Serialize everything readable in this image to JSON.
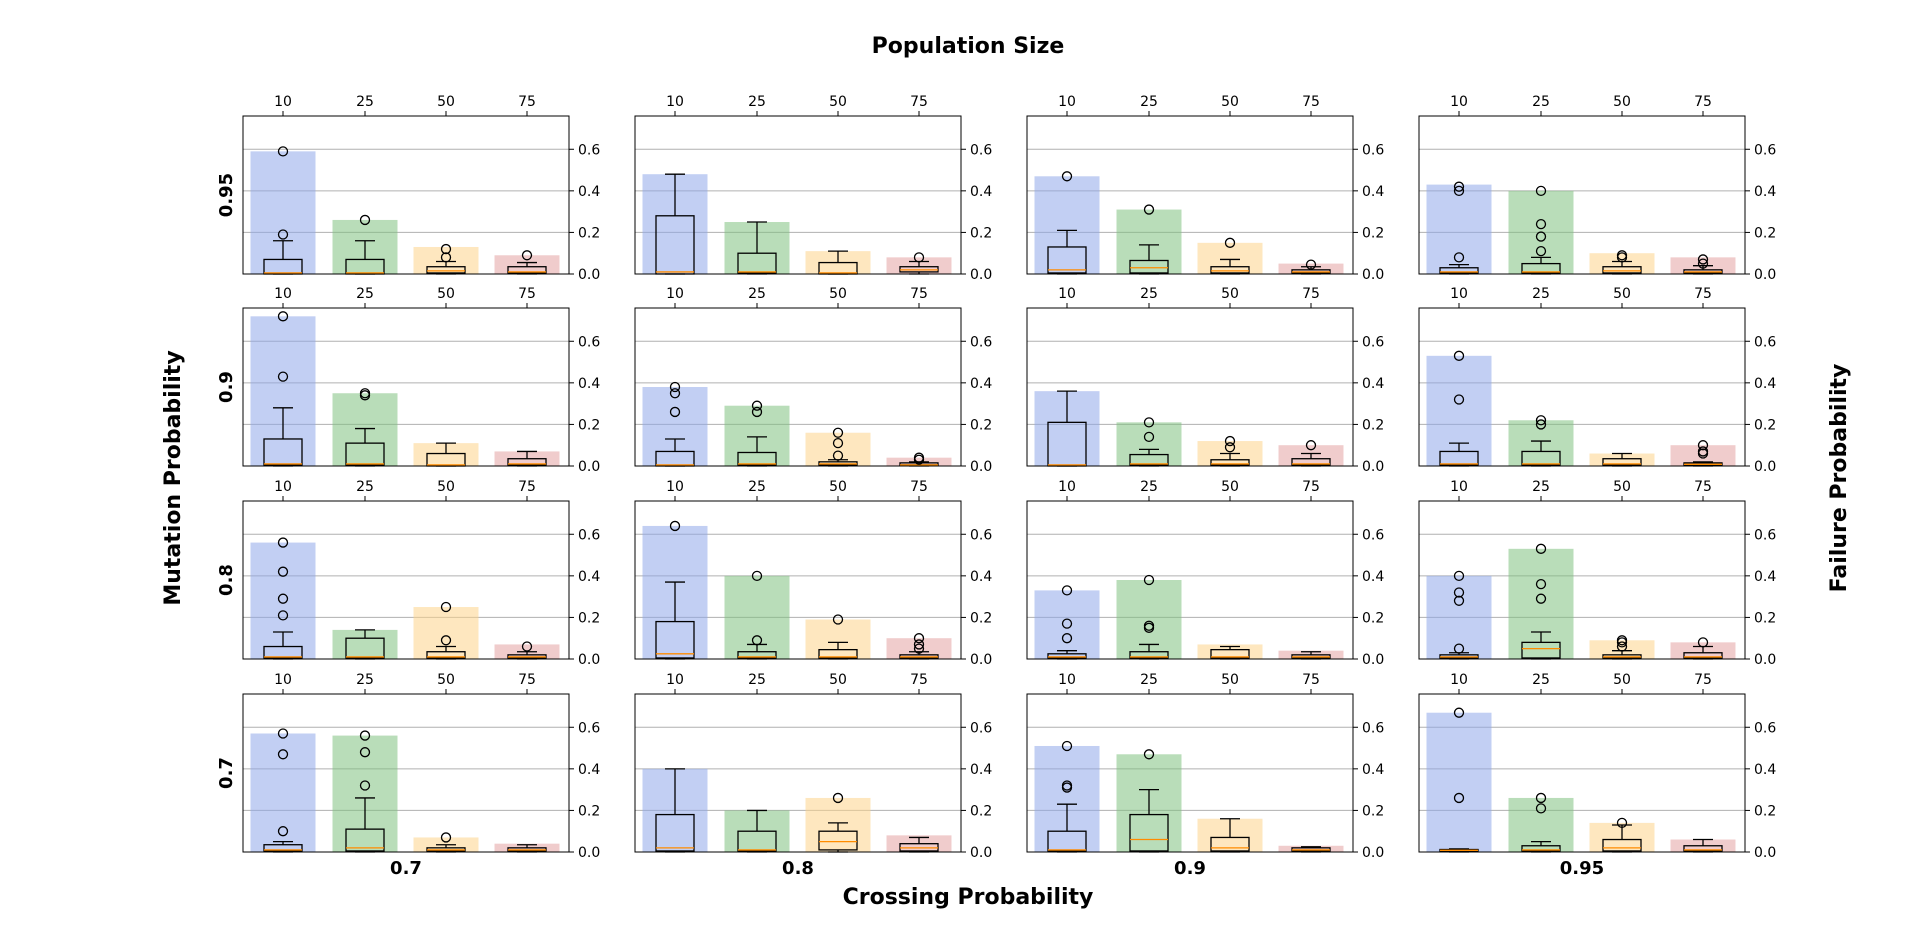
{
  "chart_data": {
    "type": "bar",
    "top_title": "Population Size",
    "bottom_title": "Crossing Probability",
    "left_title": "Mutation Probability",
    "right_title": "Failure Probability",
    "categories": [
      "10",
      "25",
      "50",
      "75"
    ],
    "bar_colors": [
      "#8fa8ea",
      "#7fc17f",
      "#fdd48a",
      "#e3a3a3"
    ],
    "box_median_color": "#ff8c00",
    "columns": [
      "0.7",
      "0.8",
      "0.9",
      "0.95"
    ],
    "rows": [
      "0.95",
      "0.9",
      "0.8",
      "0.7"
    ],
    "yticks": [
      "0.0",
      "0.2",
      "0.4",
      "0.6"
    ],
    "ylim": [
      0,
      0.76
    ],
    "grid": "horizontal",
    "panels": [
      [
        {
          "bars": [
            0.59,
            0.26,
            0.13,
            0.09
          ],
          "boxes": [
            {
              "low": 0,
              "q1": 0,
              "med": 0.005,
              "q3": 0.07,
              "high": 0.16,
              "out": [
                0.19,
                0.59
              ]
            },
            {
              "low": 0,
              "q1": 0,
              "med": 0.005,
              "q3": 0.07,
              "high": 0.16,
              "out": [
                0.26
              ]
            },
            {
              "low": 0,
              "q1": 0.005,
              "med": 0.015,
              "q3": 0.035,
              "high": 0.06,
              "out": [
                0.08,
                0.12
              ]
            },
            {
              "low": 0,
              "q1": 0.005,
              "med": 0.01,
              "q3": 0.035,
              "high": 0.055,
              "out": [
                0.09
              ]
            }
          ]
        },
        {
          "bars": [
            0.48,
            0.25,
            0.11,
            0.08
          ],
          "boxes": [
            {
              "low": 0,
              "q1": 0,
              "med": 0.01,
              "q3": 0.28,
              "high": 0.48,
              "out": []
            },
            {
              "low": 0,
              "q1": 0.005,
              "med": 0.01,
              "q3": 0.1,
              "high": 0.25,
              "out": []
            },
            {
              "low": 0,
              "q1": 0,
              "med": 0.005,
              "q3": 0.055,
              "high": 0.11,
              "out": []
            },
            {
              "low": 0,
              "q1": 0.01,
              "med": 0.02,
              "q3": 0.035,
              "high": 0.06,
              "out": [
                0.08
              ]
            }
          ]
        },
        {
          "bars": [
            0.47,
            0.31,
            0.15,
            0.05
          ],
          "boxes": [
            {
              "low": 0,
              "q1": 0.005,
              "med": 0.02,
              "q3": 0.13,
              "high": 0.21,
              "out": [
                0.47
              ]
            },
            {
              "low": 0,
              "q1": 0.005,
              "med": 0.03,
              "q3": 0.065,
              "high": 0.14,
              "out": [
                0.31
              ]
            },
            {
              "low": 0,
              "q1": 0.005,
              "med": 0.015,
              "q3": 0.035,
              "high": 0.07,
              "out": [
                0.15
              ]
            },
            {
              "low": 0,
              "q1": 0.005,
              "med": 0.01,
              "q3": 0.02,
              "high": 0.035,
              "out": [
                0.045
              ]
            }
          ]
        },
        {
          "bars": [
            0.43,
            0.4,
            0.1,
            0.08
          ],
          "boxes": [
            {
              "low": 0,
              "q1": 0.005,
              "med": 0.01,
              "q3": 0.03,
              "high": 0.045,
              "out": [
                0.08,
                0.4,
                0.42
              ]
            },
            {
              "low": 0,
              "q1": 0.005,
              "med": 0.01,
              "q3": 0.05,
              "high": 0.08,
              "out": [
                0.11,
                0.18,
                0.24,
                0.4
              ]
            },
            {
              "low": 0,
              "q1": 0.005,
              "med": 0.015,
              "q3": 0.035,
              "high": 0.06,
              "out": [
                0.08,
                0.09
              ]
            },
            {
              "low": 0,
              "q1": 0.005,
              "med": 0.01,
              "q3": 0.02,
              "high": 0.04,
              "out": [
                0.05,
                0.07
              ]
            }
          ]
        }
      ],
      [
        {
          "bars": [
            0.72,
            0.35,
            0.11,
            0.07
          ],
          "boxes": [
            {
              "low": 0,
              "q1": 0.005,
              "med": 0.01,
              "q3": 0.13,
              "high": 0.28,
              "out": [
                0.43,
                0.72
              ]
            },
            {
              "low": 0,
              "q1": 0.005,
              "med": 0.01,
              "q3": 0.11,
              "high": 0.18,
              "out": [
                0.34,
                0.35
              ]
            },
            {
              "low": 0,
              "q1": 0,
              "med": 0.005,
              "q3": 0.06,
              "high": 0.11,
              "out": []
            },
            {
              "low": 0,
              "q1": 0.005,
              "med": 0.01,
              "q3": 0.035,
              "high": 0.07,
              "out": []
            }
          ]
        },
        {
          "bars": [
            0.38,
            0.29,
            0.16,
            0.04
          ],
          "boxes": [
            {
              "low": 0,
              "q1": 0,
              "med": 0.005,
              "q3": 0.07,
              "high": 0.13,
              "out": [
                0.26,
                0.35,
                0.38
              ]
            },
            {
              "low": 0,
              "q1": 0.005,
              "med": 0.01,
              "q3": 0.065,
              "high": 0.14,
              "out": [
                0.26,
                0.29
              ]
            },
            {
              "low": 0,
              "q1": 0.005,
              "med": 0.01,
              "q3": 0.02,
              "high": 0.03,
              "out": [
                0.05,
                0.11,
                0.16
              ]
            },
            {
              "low": 0,
              "q1": 0.005,
              "med": 0.005,
              "q3": 0.015,
              "high": 0.02,
              "out": [
                0.03,
                0.04
              ]
            }
          ]
        },
        {
          "bars": [
            0.36,
            0.21,
            0.12,
            0.1
          ],
          "boxes": [
            {
              "low": 0,
              "q1": 0,
              "med": 0.005,
              "q3": 0.21,
              "high": 0.36,
              "out": []
            },
            {
              "low": 0,
              "q1": 0.005,
              "med": 0.01,
              "q3": 0.055,
              "high": 0.08,
              "out": [
                0.14,
                0.21
              ]
            },
            {
              "low": 0,
              "q1": 0.005,
              "med": 0.01,
              "q3": 0.03,
              "high": 0.06,
              "out": [
                0.09,
                0.12
              ]
            },
            {
              "low": 0,
              "q1": 0.005,
              "med": 0.01,
              "q3": 0.035,
              "high": 0.06,
              "out": [
                0.1
              ]
            }
          ]
        },
        {
          "bars": [
            0.53,
            0.22,
            0.06,
            0.1
          ],
          "boxes": [
            {
              "low": 0,
              "q1": 0.005,
              "med": 0.01,
              "q3": 0.07,
              "high": 0.11,
              "out": [
                0.32,
                0.53
              ]
            },
            {
              "low": 0,
              "q1": 0.005,
              "med": 0.01,
              "q3": 0.07,
              "high": 0.12,
              "out": [
                0.2,
                0.22
              ]
            },
            {
              "low": 0,
              "q1": 0.005,
              "med": 0.01,
              "q3": 0.035,
              "high": 0.06,
              "out": []
            },
            {
              "low": 0,
              "q1": 0.005,
              "med": 0.008,
              "q3": 0.015,
              "high": 0.02,
              "out": [
                0.06,
                0.07,
                0.1
              ]
            }
          ]
        }
      ],
      [
        {
          "bars": [
            0.56,
            0.14,
            0.25,
            0.07
          ],
          "boxes": [
            {
              "low": 0,
              "q1": 0.005,
              "med": 0.01,
              "q3": 0.06,
              "high": 0.13,
              "out": [
                0.21,
                0.29,
                0.42,
                0.56
              ]
            },
            {
              "low": 0,
              "q1": 0.005,
              "med": 0.01,
              "q3": 0.1,
              "high": 0.14,
              "out": []
            },
            {
              "low": 0,
              "q1": 0.005,
              "med": 0.01,
              "q3": 0.035,
              "high": 0.06,
              "out": [
                0.09,
                0.25
              ]
            },
            {
              "low": 0,
              "q1": 0.005,
              "med": 0.01,
              "q3": 0.02,
              "high": 0.035,
              "out": [
                0.06
              ]
            }
          ]
        },
        {
          "bars": [
            0.64,
            0.4,
            0.19,
            0.1
          ],
          "boxes": [
            {
              "low": 0,
              "q1": 0.005,
              "med": 0.025,
              "q3": 0.18,
              "high": 0.37,
              "out": [
                0.64
              ]
            },
            {
              "low": 0,
              "q1": 0.005,
              "med": 0.01,
              "q3": 0.035,
              "high": 0.07,
              "out": [
                0.09,
                0.4
              ]
            },
            {
              "low": 0,
              "q1": 0.005,
              "med": 0.01,
              "q3": 0.045,
              "high": 0.08,
              "out": [
                0.19
              ]
            },
            {
              "low": 0,
              "q1": 0.005,
              "med": 0.01,
              "q3": 0.02,
              "high": 0.035,
              "out": [
                0.05,
                0.07,
                0.1
              ]
            }
          ]
        },
        {
          "bars": [
            0.33,
            0.38,
            0.07,
            0.04
          ],
          "boxes": [
            {
              "low": 0,
              "q1": 0.005,
              "med": 0.01,
              "q3": 0.025,
              "high": 0.04,
              "out": [
                0.1,
                0.17,
                0.33
              ]
            },
            {
              "low": 0,
              "q1": 0.005,
              "med": 0.01,
              "q3": 0.035,
              "high": 0.07,
              "out": [
                0.15,
                0.16,
                0.38
              ]
            },
            {
              "low": 0,
              "q1": 0.005,
              "med": 0.01,
              "q3": 0.045,
              "high": 0.06,
              "out": []
            },
            {
              "low": 0,
              "q1": 0.005,
              "med": 0.01,
              "q3": 0.02,
              "high": 0.035,
              "out": []
            }
          ]
        },
        {
          "bars": [
            0.4,
            0.53,
            0.09,
            0.08
          ],
          "boxes": [
            {
              "low": 0,
              "q1": 0.005,
              "med": 0.01,
              "q3": 0.02,
              "high": 0.03,
              "out": [
                0.05,
                0.28,
                0.32,
                0.4
              ]
            },
            {
              "low": 0,
              "q1": 0.005,
              "med": 0.05,
              "q3": 0.08,
              "high": 0.13,
              "out": [
                0.29,
                0.36,
                0.53
              ]
            },
            {
              "low": 0,
              "q1": 0.005,
              "med": 0.01,
              "q3": 0.02,
              "high": 0.04,
              "out": [
                0.06,
                0.08,
                0.09
              ]
            },
            {
              "low": 0,
              "q1": 0.005,
              "med": 0.01,
              "q3": 0.03,
              "high": 0.06,
              "out": [
                0.08
              ]
            }
          ]
        }
      ],
      [
        {
          "bars": [
            0.57,
            0.56,
            0.07,
            0.04
          ],
          "boxes": [
            {
              "low": 0,
              "q1": 0.005,
              "med": 0.01,
              "q3": 0.035,
              "high": 0.05,
              "out": [
                0.1,
                0.47,
                0.57
              ]
            },
            {
              "low": 0,
              "q1": 0.005,
              "med": 0.02,
              "q3": 0.11,
              "high": 0.26,
              "out": [
                0.32,
                0.48,
                0.56
              ]
            },
            {
              "low": 0,
              "q1": 0.005,
              "med": 0.01,
              "q3": 0.02,
              "high": 0.035,
              "out": [
                0.07
              ]
            },
            {
              "low": 0,
              "q1": 0.005,
              "med": 0.01,
              "q3": 0.02,
              "high": 0.035,
              "out": []
            }
          ]
        },
        {
          "bars": [
            0.4,
            0.2,
            0.26,
            0.08
          ],
          "boxes": [
            {
              "low": 0,
              "q1": 0.005,
              "med": 0.02,
              "q3": 0.18,
              "high": 0.4,
              "out": []
            },
            {
              "low": 0,
              "q1": 0.005,
              "med": 0.01,
              "q3": 0.1,
              "high": 0.2,
              "out": []
            },
            {
              "low": 0,
              "q1": 0.01,
              "med": 0.05,
              "q3": 0.1,
              "high": 0.14,
              "out": [
                0.26
              ]
            },
            {
              "low": 0,
              "q1": 0.005,
              "med": 0.02,
              "q3": 0.04,
              "high": 0.07,
              "out": []
            }
          ]
        },
        {
          "bars": [
            0.51,
            0.47,
            0.16,
            0.03
          ],
          "boxes": [
            {
              "low": 0,
              "q1": 0.005,
              "med": 0.01,
              "q3": 0.1,
              "high": 0.23,
              "out": [
                0.31,
                0.32,
                0.51
              ]
            },
            {
              "low": 0,
              "q1": 0.005,
              "med": 0.06,
              "q3": 0.18,
              "high": 0.3,
              "out": [
                0.47
              ]
            },
            {
              "low": 0,
              "q1": 0.005,
              "med": 0.02,
              "q3": 0.07,
              "high": 0.16,
              "out": []
            },
            {
              "low": 0,
              "q1": 0.005,
              "med": 0.01,
              "q3": 0.02,
              "high": 0.025,
              "out": []
            }
          ]
        },
        {
          "bars": [
            0.67,
            0.26,
            0.14,
            0.06
          ],
          "boxes": [
            {
              "low": 0,
              "q1": 0.005,
              "med": 0.008,
              "q3": 0.012,
              "high": 0.015,
              "out": [
                0.26,
                0.67
              ]
            },
            {
              "low": 0,
              "q1": 0.005,
              "med": 0.01,
              "q3": 0.03,
              "high": 0.05,
              "out": [
                0.21,
                0.26
              ]
            },
            {
              "low": 0,
              "q1": 0.005,
              "med": 0.02,
              "q3": 0.06,
              "high": 0.13,
              "out": [
                0.14
              ]
            },
            {
              "low": 0,
              "q1": 0.005,
              "med": 0.01,
              "q3": 0.03,
              "high": 0.06,
              "out": []
            }
          ]
        }
      ]
    ]
  }
}
